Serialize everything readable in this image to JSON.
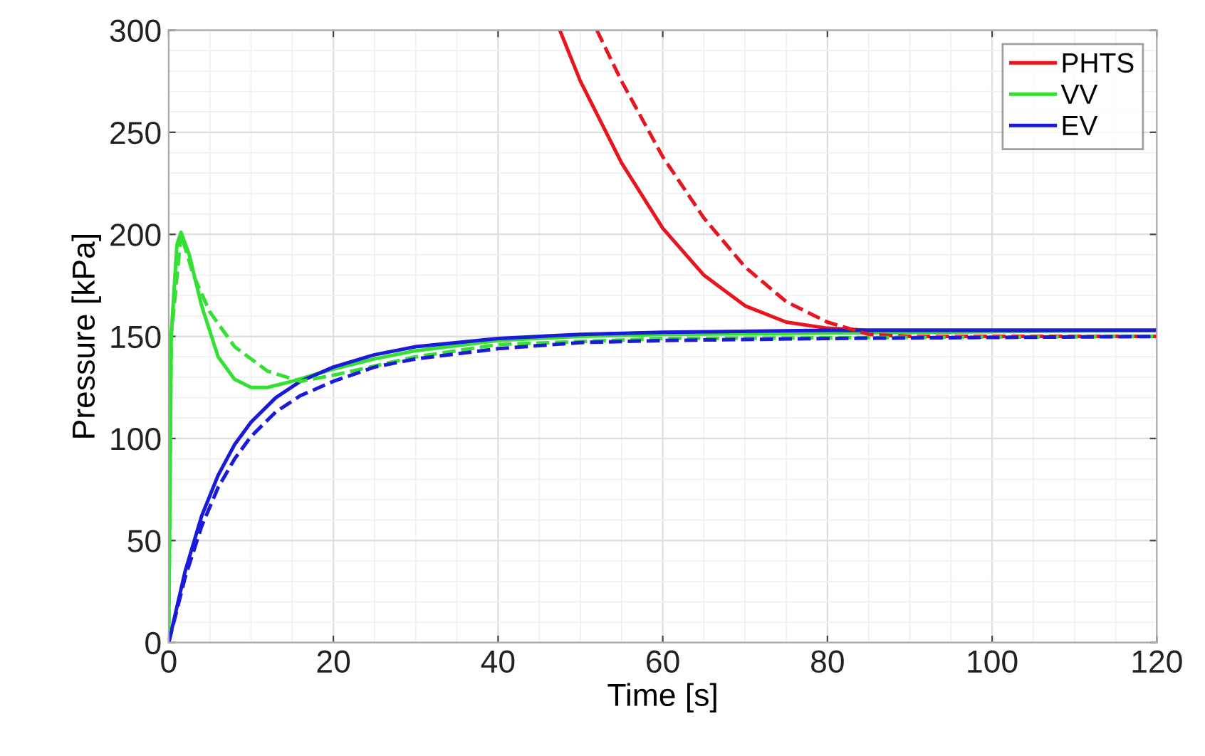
{
  "chart_data": {
    "type": "line",
    "xlabel": "Time [s]",
    "ylabel": "Pressure [kPa]",
    "xlim": [
      0,
      120
    ],
    "ylim": [
      0,
      300
    ],
    "xticks": [
      0,
      20,
      40,
      60,
      80,
      100,
      120
    ],
    "yticks": [
      0,
      50,
      100,
      150,
      200,
      250,
      300
    ],
    "grid": true,
    "legend": "top right",
    "series": [
      {
        "name": "PHTS",
        "color": "#e8141e",
        "line_style": "solid",
        "x": [
          47.5,
          50,
          55,
          60,
          65,
          70,
          75,
          80,
          85,
          120
        ],
        "values": [
          300,
          275,
          235,
          203,
          180,
          165,
          157,
          154,
          153,
          153
        ]
      },
      {
        "name": "VV",
        "color": "#33e033",
        "line_style": "solid",
        "x": [
          0,
          0.3,
          1,
          1.5,
          2.5,
          4,
          6,
          8,
          10,
          12,
          15,
          20,
          25,
          30,
          40,
          50,
          60,
          120
        ],
        "values": [
          0,
          150,
          195,
          201,
          190,
          165,
          140,
          129,
          125,
          125,
          128,
          134,
          139,
          143,
          148,
          150,
          151,
          153
        ]
      },
      {
        "name": "EV",
        "color": "#1a1ad8",
        "line_style": "solid",
        "x": [
          0,
          2,
          4,
          6,
          8,
          10,
          13,
          16,
          20,
          25,
          30,
          40,
          50,
          60,
          80,
          120
        ],
        "values": [
          0,
          35,
          62,
          82,
          97,
          108,
          120,
          128,
          135,
          141,
          145,
          149,
          151,
          152,
          153,
          153
        ]
      },
      {
        "color": "#e8141e",
        "line_style": "dashed",
        "x": [
          52,
          55,
          60,
          65,
          70,
          75,
          80,
          85,
          90,
          120
        ],
        "values": [
          300,
          275,
          238,
          208,
          184,
          167,
          157,
          151,
          150,
          150
        ]
      },
      {
        "color": "#33e033",
        "line_style": "dashed",
        "x": [
          0,
          0.3,
          1.5,
          3,
          5,
          8,
          12,
          16,
          20,
          30,
          40,
          60,
          120
        ],
        "values": [
          0,
          150,
          200,
          180,
          162,
          145,
          133,
          128,
          131,
          140,
          146,
          149,
          150
        ]
      },
      {
        "color": "#1a1ad8",
        "line_style": "dashed",
        "x": [
          0,
          2,
          4,
          6,
          8,
          10,
          13,
          16,
          20,
          25,
          30,
          40,
          50,
          60,
          80,
          120
        ],
        "values": [
          0,
          32,
          57,
          76,
          90,
          101,
          113,
          121,
          128,
          135,
          139,
          144,
          147,
          148,
          149,
          150
        ]
      }
    ]
  }
}
